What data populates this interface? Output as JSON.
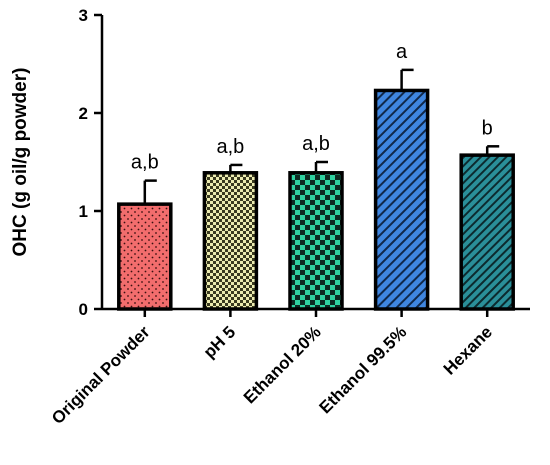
{
  "chart_data": {
    "type": "bar",
    "title": "",
    "xlabel": "",
    "ylabel": "OHC  (g oil/g powder)",
    "ylim": [
      0,
      3
    ],
    "yticks": [
      0,
      1,
      2,
      3
    ],
    "grid": false,
    "legend": "none",
    "categories": [
      "Original Powder",
      "pH 5",
      "Ethanol 20%",
      "Ethanol 99.5%",
      "Hexane"
    ],
    "values": [
      1.07,
      1.39,
      1.39,
      2.23,
      1.57
    ],
    "error_plus": [
      0.24,
      0.08,
      0.11,
      0.21,
      0.09
    ],
    "significance_labels": [
      "a,b",
      "a,b",
      "a,b",
      "a",
      "b"
    ],
    "fill_colors": [
      "#f26d6d",
      "#ecebb0",
      "#2fd1a0",
      "#3f86e0",
      "#2a8f99"
    ],
    "patterns": [
      "dots",
      "checker-small",
      "checker-large",
      "diagonal-lines",
      "diagonal-lines-dense"
    ]
  }
}
